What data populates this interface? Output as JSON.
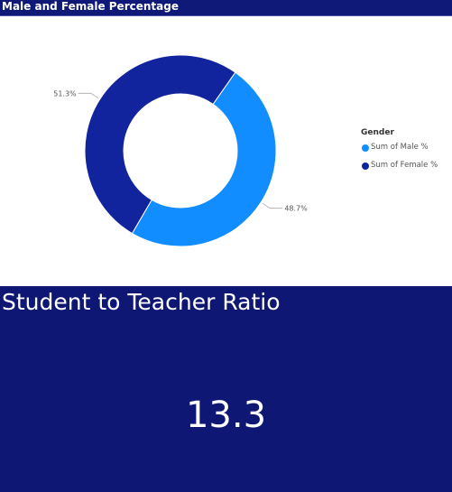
{
  "donut_card": {
    "title": "Male and Female Percentage"
  },
  "chart_data": {
    "type": "pie",
    "variant": "donut",
    "title": "Male and Female Percentage",
    "legend": {
      "title": "Gender",
      "placement": "right"
    },
    "slices": [
      {
        "name": "Sum of Male %",
        "value": 48.7,
        "label": "48.7%",
        "color": "#118dff"
      },
      {
        "name": "Sum of Female %",
        "value": 51.3,
        "label": "51.3%",
        "color": "#12239e"
      }
    ]
  },
  "kpi_card": {
    "title": "Student to Teacher Ratio",
    "value": "13.3"
  },
  "colors": {
    "header_bg": "#0f1a78",
    "kpi_bg": "#0f1774",
    "male": "#118dff",
    "female": "#12239e"
  }
}
